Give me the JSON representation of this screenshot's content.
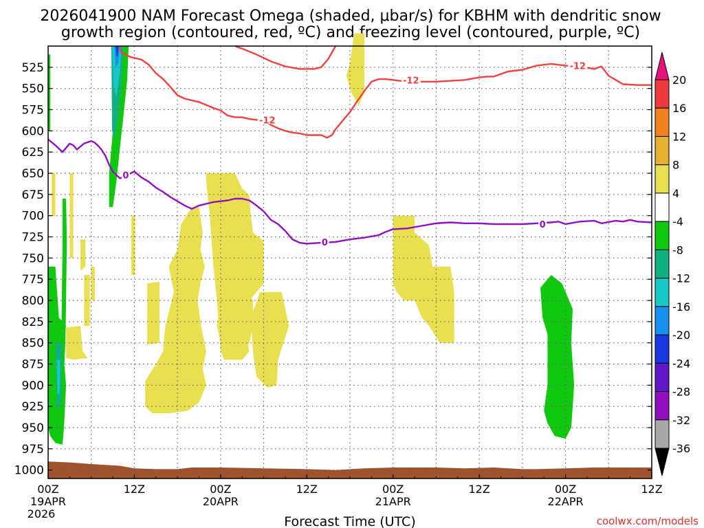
{
  "chart_data": {
    "type": "heatmap",
    "title_line1": "2026041900 NAM Forecast Omega (shaded, μbar/s) for KBHM with dendritic snow",
    "title_line2": "growth region (contoured, red, ºC) and freezing level (contoured, purple, ºC)",
    "xlabel": "Forecast Time (UTC)",
    "ylabel": "",
    "credit": "coolwx.com/models",
    "x_range_hours": [
      0,
      84
    ],
    "y_range_hpa": [
      500,
      1010
    ],
    "y_ticks": [
      "525",
      "550",
      "575",
      "600",
      "625",
      "650",
      "675",
      "700",
      "725",
      "750",
      "775",
      "800",
      "825",
      "850",
      "875",
      "900",
      "925",
      "950",
      "975",
      "1000"
    ],
    "x_ticks": [
      {
        "hour": 0,
        "label": "00Z",
        "sub1": "19APR",
        "sub2": "2026"
      },
      {
        "hour": 12,
        "label": "12Z",
        "sub1": "",
        "sub2": ""
      },
      {
        "hour": 24,
        "label": "00Z",
        "sub1": "20APR",
        "sub2": ""
      },
      {
        "hour": 36,
        "label": "12Z",
        "sub1": "",
        "sub2": ""
      },
      {
        "hour": 48,
        "label": "00Z",
        "sub1": "21APR",
        "sub2": ""
      },
      {
        "hour": 60,
        "label": "12Z",
        "sub1": "",
        "sub2": ""
      },
      {
        "hour": 72,
        "label": "00Z",
        "sub1": "22APR",
        "sub2": ""
      },
      {
        "hour": 84,
        "label": "12Z",
        "sub1": "",
        "sub2": ""
      }
    ],
    "colorbar": {
      "labels": [
        "20",
        "16",
        "12",
        "8",
        "4",
        "-4",
        "-8",
        "-12",
        "-16",
        "-20",
        "-24",
        "-28",
        "-32",
        "-36"
      ],
      "colors": [
        "#e8137a",
        "#ee3a3a",
        "#f08020",
        "#e8b030",
        "#e8e050",
        "#ffffff",
        "#10c810",
        "#10b080",
        "#18c8c8",
        "#1890f0",
        "#1838e0",
        "#6018c8",
        "#9010c0",
        "#a8a8a8",
        "#000000"
      ]
    },
    "colors": {
      "up_weak": "#e8e050",
      "down_weak": "#10c810",
      "down_teal": "#10b080",
      "down_cyan": "#18c8c8",
      "down_blue": "#1890f0",
      "down_dblue": "#1838e0",
      "terrain": "#a0522d",
      "dgz_line": "#f04040",
      "frz_line": "#9010c0"
    },
    "contour_labels": {
      "dgz": "-12",
      "frz": "0"
    },
    "series": [
      {
        "name": "dgz_top (-12C, upper)",
        "points": [
          [
            10.0,
            500
          ],
          [
            10.2,
            508
          ],
          [
            11.5,
            513
          ],
          [
            13,
            516
          ],
          [
            14,
            522
          ],
          [
            15,
            532
          ],
          [
            16,
            539
          ],
          [
            17,
            548
          ],
          [
            18,
            558
          ],
          [
            19,
            562
          ],
          [
            21,
            566
          ],
          [
            23,
            573
          ],
          [
            24,
            576
          ],
          [
            25,
            582
          ],
          [
            26,
            584
          ],
          [
            27,
            584
          ],
          [
            28,
            586
          ],
          [
            30,
            588
          ],
          [
            31,
            593
          ],
          [
            32,
            597
          ],
          [
            33,
            600
          ],
          [
            34,
            602
          ],
          [
            35,
            603
          ],
          [
            36,
            605
          ],
          [
            37,
            605
          ],
          [
            38,
            605
          ],
          [
            38.8,
            608
          ],
          [
            39.5,
            605
          ],
          [
            40,
            598
          ],
          [
            41,
            588
          ],
          [
            42,
            578
          ],
          [
            43,
            565
          ],
          [
            44,
            553
          ],
          [
            45,
            542
          ],
          [
            46,
            539
          ],
          [
            47,
            539
          ],
          [
            48,
            540
          ],
          [
            50,
            542
          ],
          [
            52,
            542
          ],
          [
            54,
            542
          ],
          [
            56,
            541
          ],
          [
            58,
            540
          ],
          [
            60,
            537
          ],
          [
            61,
            536
          ],
          [
            62,
            536
          ],
          [
            64,
            530
          ],
          [
            66,
            528
          ],
          [
            68,
            523
          ],
          [
            70,
            521
          ],
          [
            72,
            523
          ],
          [
            74,
            524
          ],
          [
            76,
            527
          ],
          [
            77,
            524
          ],
          [
            78,
            535
          ],
          [
            79,
            540
          ],
          [
            80,
            545
          ],
          [
            82,
            546
          ],
          [
            84,
            546
          ]
        ]
      },
      {
        "name": "dgz_upper_branch",
        "points": [
          [
            26,
            500
          ],
          [
            27,
            503
          ],
          [
            29,
            510
          ],
          [
            31,
            518
          ],
          [
            33,
            524
          ],
          [
            35,
            527
          ],
          [
            37,
            527
          ],
          [
            38,
            525
          ],
          [
            39,
            515
          ],
          [
            40,
            500
          ]
        ]
      },
      {
        "name": "freezing_level (0C)",
        "points": [
          [
            0,
            610
          ],
          [
            1,
            617
          ],
          [
            2,
            625
          ],
          [
            3,
            615
          ],
          [
            3.5,
            617
          ],
          [
            4,
            622
          ],
          [
            5,
            615
          ],
          [
            6,
            612
          ],
          [
            6.5,
            614
          ],
          [
            7,
            618
          ],
          [
            7.5,
            623
          ],
          [
            8,
            630
          ],
          [
            8.5,
            640
          ],
          [
            9,
            648
          ],
          [
            10,
            656
          ],
          [
            11,
            652
          ],
          [
            12,
            648
          ],
          [
            13,
            655
          ],
          [
            14,
            660
          ],
          [
            15,
            667
          ],
          [
            16,
            672
          ],
          [
            17,
            678
          ],
          [
            18,
            683
          ],
          [
            19,
            688
          ],
          [
            20,
            692
          ],
          [
            21,
            688
          ],
          [
            22,
            686
          ],
          [
            23,
            684
          ],
          [
            24,
            683
          ],
          [
            25,
            682
          ],
          [
            26,
            680
          ],
          [
            27,
            680
          ],
          [
            28,
            682
          ],
          [
            29,
            688
          ],
          [
            30,
            695
          ],
          [
            31,
            705
          ],
          [
            32,
            710
          ],
          [
            33,
            718
          ],
          [
            34,
            728
          ],
          [
            35,
            732
          ],
          [
            36,
            733
          ],
          [
            38,
            732
          ],
          [
            40,
            731
          ],
          [
            42,
            728
          ],
          [
            44,
            726
          ],
          [
            46,
            723
          ],
          [
            47,
            719
          ],
          [
            48,
            716
          ],
          [
            50,
            715
          ],
          [
            52,
            712
          ],
          [
            54,
            709
          ],
          [
            56,
            708
          ],
          [
            58,
            709
          ],
          [
            60,
            709
          ],
          [
            62,
            710
          ],
          [
            64,
            710
          ],
          [
            66,
            710
          ],
          [
            68,
            709
          ],
          [
            70,
            708
          ],
          [
            71,
            707
          ],
          [
            72,
            710
          ],
          [
            74,
            707
          ],
          [
            76,
            706
          ],
          [
            77,
            709
          ],
          [
            79,
            706
          ],
          [
            80,
            707
          ],
          [
            81,
            705
          ],
          [
            82,
            707
          ],
          [
            84,
            708
          ]
        ]
      }
    ],
    "regions": [
      {
        "name": "up-region-1",
        "color": "up_weak",
        "poly": [
          [
            22,
            650
          ],
          [
            26,
            650
          ],
          [
            27,
            668
          ],
          [
            28,
            676
          ],
          [
            28.2,
            700
          ],
          [
            28.5,
            720
          ],
          [
            30,
            730
          ],
          [
            30,
            780
          ],
          [
            28,
            800
          ],
          [
            27.5,
            840
          ],
          [
            28,
            860
          ],
          [
            27,
            870
          ],
          [
            24.5,
            870
          ],
          [
            24,
            860
          ],
          [
            23.5,
            800
          ],
          [
            23,
            760
          ],
          [
            22.5,
            700
          ],
          [
            22,
            660
          ]
        ]
      },
      {
        "name": "up-region-2",
        "color": "up_weak",
        "poly": [
          [
            20,
            690
          ],
          [
            21,
            690
          ],
          [
            21.5,
            720
          ],
          [
            21.2,
            740
          ],
          [
            21.8,
            760
          ],
          [
            21.2,
            780
          ],
          [
            20.8,
            800
          ],
          [
            21.3,
            830
          ],
          [
            22,
            860
          ],
          [
            21.5,
            880
          ],
          [
            22,
            900
          ],
          [
            21,
            920
          ],
          [
            19.5,
            930
          ],
          [
            17,
            933
          ],
          [
            14.5,
            933
          ],
          [
            13.5,
            925
          ],
          [
            13.5,
            895
          ],
          [
            15,
            875
          ],
          [
            16,
            860
          ],
          [
            16.3,
            830
          ],
          [
            17.5,
            790
          ],
          [
            16.8,
            760
          ],
          [
            18,
            740
          ],
          [
            18.5,
            710
          ]
        ]
      },
      {
        "name": "up-region-3",
        "color": "up_weak",
        "poly": [
          [
            13.8,
            780
          ],
          [
            15.5,
            778
          ],
          [
            15.5,
            850
          ],
          [
            13.8,
            852
          ]
        ]
      }
    ]
  }
}
